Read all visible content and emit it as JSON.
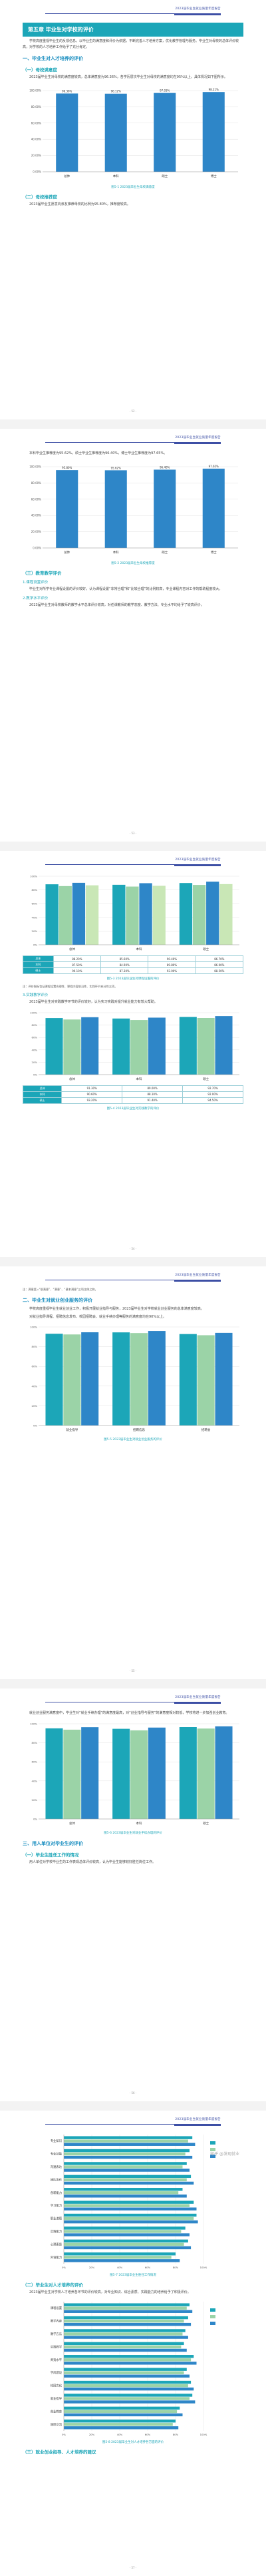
{
  "header": {
    "text": "2023届毕业生就业质量年度报告"
  },
  "page1": {
    "chapter_title": "第五章 毕业生对学校的评价",
    "intro": "学校高度重视毕业生的反馈信息，以毕业生的满意度和评价为依据，不断完善人才培养方案，优化教学管理与服务。毕业生对母校的总体评价较高，对学校的人才培养工作给予了充分肯定。",
    "sec1": "一、毕业生对人才培养的评价",
    "sub1": "（一）母校满意度",
    "para1": "2023届毕业生对母校的满意度较高，总体满意度为96.36%，各学历层次毕业生对母校的满意度均在95%以上，具体情况如下图所示。",
    "caption1": "图5-1 2023届毕业生母校满意度",
    "sub2": "（二）母校推荐度",
    "para2": "2023届毕业生愿意向亲友推荐母校的比例为95.80%，推荐度较高。",
    "page_number": "- 52 -"
  },
  "chart1": {
    "type": "bar",
    "categories": [
      "总体",
      "本科",
      "硕士",
      "博士"
    ],
    "values": [
      96.36,
      96.12,
      97.03,
      98.21
    ],
    "value_labels": [
      "96.36%",
      "96.12%",
      "97.03%",
      "98.21%"
    ],
    "ylim": [
      0,
      100
    ],
    "ytick_labels": [
      "0.00%",
      "20.00%",
      "40.00%",
      "60.00%",
      "80.00%",
      "100.00%"
    ],
    "color": "#2e86c8"
  },
  "page2": {
    "para1": "本科毕业生推荐度为95.62%，硕士毕业生推荐度为96.40%，博士毕业生推荐度为97.65%。",
    "caption": "图5-2 2023届毕业生母校推荐度",
    "sub3": "（三）教育教学评价",
    "subsub1": "1.课程设置评价",
    "para2": "毕业生对所学专业课程设置的评价较好，认为课程设置“非常合理”和“比较合理”的比例较高，专业课程内容对工作的帮助程度较大。",
    "subsub2": "2.教学水平评价",
    "para3": "2023届毕业生对母校教师的教学水平总体评价较高，对任课教师的教学态度、教学方法、专业水平均给予了较高评价。",
    "page_number": "- 53 -"
  },
  "chart2": {
    "type": "bar",
    "categories": [
      "总体",
      "本科",
      "硕士",
      "博士"
    ],
    "values": [
      95.8,
      95.62,
      96.4,
      97.65
    ],
    "value_labels": [
      "95.80%",
      "95.62%",
      "96.40%",
      "97.65%"
    ],
    "ylim": [
      0,
      100
    ],
    "ytick_labels": [
      "0.00%",
      "20.00%",
      "40.00%",
      "60.00%",
      "80.00%",
      "100.00%"
    ],
    "color": "#2e86c8"
  },
  "page3": {
    "caption1": "图5-3 2023届毕业生对课程设置的评价",
    "note1": "注：评价指标包括课程设置合理性、课程内容前沿性、实践环节充分性三项。",
    "subsub": "3.实践教学评价",
    "para": "2023届毕业生对实践教学环节的评价较好，认为实习实践对提升就业能力有较大帮助。",
    "caption2": "图5-4 2023届毕业生对实践教学的评价",
    "page_number": "- 54 -"
  },
  "chart3": {
    "type": "bar",
    "groups": [
      "总体",
      "本科",
      "硕士"
    ],
    "series": [
      {
        "name": "",
        "values": [
          88.2,
          87.5,
          90.1
        ],
        "color": "#1ca6b8"
      },
      {
        "name": "",
        "values": [
          85.6,
          84.9,
          87.3
        ],
        "color": "#9bd3a7"
      },
      {
        "name": "",
        "values": [
          90.4,
          89.8,
          92.0
        ],
        "color": "#2e86c8"
      },
      {
        "name": "",
        "values": [
          86.7,
          86.0,
          88.5
        ],
        "color": "#c9e7b6"
      }
    ],
    "ylim": [
      0,
      100
    ],
    "table_rows": [
      [
        "总体",
        "88.20%",
        "85.60%",
        "90.40%",
        "86.70%"
      ],
      [
        "本科",
        "87.50%",
        "84.90%",
        "89.80%",
        "86.00%"
      ],
      [
        "硕士",
        "90.10%",
        "87.30%",
        "92.00%",
        "88.50%"
      ]
    ]
  },
  "chart4": {
    "type": "bar",
    "groups": [
      "总体",
      "本科",
      "硕士"
    ],
    "series": [
      {
        "name": "",
        "values": [
          91.3,
          90.6,
          93.2
        ],
        "color": "#1ca6b8"
      },
      {
        "name": "",
        "values": [
          89.0,
          88.1,
          91.4
        ],
        "color": "#9bd3a7"
      },
      {
        "name": "",
        "values": [
          92.7,
          92.0,
          94.5
        ],
        "color": "#2e86c8"
      }
    ],
    "ylim": [
      0,
      100
    ],
    "table_rows": [
      [
        "总体",
        "91.30%",
        "89.00%",
        "92.70%"
      ],
      [
        "本科",
        "90.60%",
        "88.10%",
        "92.00%"
      ],
      [
        "硕士",
        "93.20%",
        "91.40%",
        "94.50%"
      ]
    ]
  },
  "page4": {
    "note": "注：满意度=“很满意”、“满意”、“基本满意”三项比例之和。",
    "sec2": "二、毕业生对就业创业服务的评价",
    "para1": "学校高度重视毕业生就业创业工作，积极开展就业指导与服务，2023届毕业生对学校就业创业服务的总体满意度较高。",
    "para2": "对就业指导课程、招聘信息发布、校园招聘会、就业手续办理等服务的满意度均在90%以上。",
    "caption": "图5-5 2023届毕业生对就业创业服务的评价",
    "page_number": "- 55 -"
  },
  "chart5": {
    "type": "bar",
    "groups": [
      "就业指导",
      "招聘信息",
      "招聘会"
    ],
    "series": [
      {
        "name": "",
        "values": [
          93.1,
          94.5,
          92.8
        ],
        "color": "#1ca6b8"
      },
      {
        "name": "",
        "values": [
          92.4,
          93.8,
          91.6
        ],
        "color": "#9bd3a7"
      },
      {
        "name": "",
        "values": [
          94.6,
          95.9,
          94.0
        ],
        "color": "#2e86c8"
      }
    ],
    "ylim": [
      0,
      100
    ]
  },
  "page5": {
    "para1": "就业创业服务满意度中，毕业生对“就业手续办理”的满意度最高，对“创业指导与服务”的满意度相对较低，学校将进一步加强创业教育。",
    "caption1": "图5-6 2023届毕业生对就业手续办理的评价",
    "sec3": "三、用人单位对毕业生的评价",
    "sub1": "（一）毕业生胜任工作的情况",
    "para2": "用人单位对学校毕业生的工作表现总体评价较高，认为毕业生能够较好胜任岗位工作。",
    "page_number": "- 56 -"
  },
  "chart6": {
    "type": "bar",
    "groups": [
      "总体",
      "本科",
      "硕士"
    ],
    "series": [
      {
        "name": "",
        "values": [
          95.2,
          94.7,
          96.5
        ],
        "color": "#1ca6b8"
      },
      {
        "name": "",
        "values": [
          93.8,
          93.1,
          95.0
        ],
        "color": "#9bd3a7"
      },
      {
        "name": "",
        "values": [
          96.4,
          96.0,
          97.3
        ],
        "color": "#2e86c8"
      }
    ],
    "ylim": [
      0,
      100
    ]
  },
  "page6": {
    "caption1": "图5-7 2023届毕业生胜任工作情况",
    "sub2": "（二）毕业生对人才培养的评价",
    "para1": "2023届毕业生对学校人才培养各环节的评价较高，对专业知识、综合素质、实践能力的培养给予了积极评价。",
    "caption2": "图5-8 2023届毕业生对人才培养各方面的评价",
    "sub3": "（三）就业创业指导、人才培养的建议",
    "page_number": "- 57 -",
    "watermark": "知乎 @发现就业"
  },
  "chart7": {
    "type": "bar",
    "orientation": "horizontal",
    "categories": [
      "专业知识",
      "专业技能",
      "沟通表达",
      "团队协作",
      "创新能力",
      "学习能力",
      "职业道德",
      "实践能力",
      "心理素质",
      "外语能力"
    ],
    "series": [
      {
        "name": "",
        "values": [
          92,
          90,
          88,
          91,
          85,
          93,
          95,
          87,
          89,
          80
        ],
        "color": "#1ca6b8"
      },
      {
        "name": "",
        "values": [
          89,
          87,
          85,
          88,
          82,
          90,
          93,
          84,
          86,
          77
        ],
        "color": "#9bd3a7"
      },
      {
        "name": "",
        "values": [
          94,
          92,
          90,
          93,
          88,
          95,
          96,
          90,
          91,
          83
        ],
        "color": "#2e86c8"
      }
    ],
    "xlim": [
      0,
      100
    ]
  },
  "chart8": {
    "type": "bar",
    "orientation": "horizontal",
    "categories": [
      "课程设置",
      "教学内容",
      "教学方法",
      "实践教学",
      "师资水平",
      "学风建设",
      "校园文化",
      "就业指导",
      "创业教育",
      "国际交流"
    ],
    "series": [
      {
        "name": "",
        "values": [
          90,
          89,
          87,
          86,
          93,
          88,
          91,
          92,
          83,
          80
        ],
        "color": "#1ca6b8"
      },
      {
        "name": "",
        "values": [
          88,
          86,
          85,
          84,
          91,
          86,
          89,
          90,
          81,
          78
        ],
        "color": "#9bd3a7"
      },
      {
        "name": "",
        "values": [
          92,
          91,
          89,
          88,
          95,
          90,
          93,
          94,
          85,
          82
        ],
        "color": "#2e86c8"
      }
    ],
    "xlim": [
      0,
      100
    ]
  }
}
